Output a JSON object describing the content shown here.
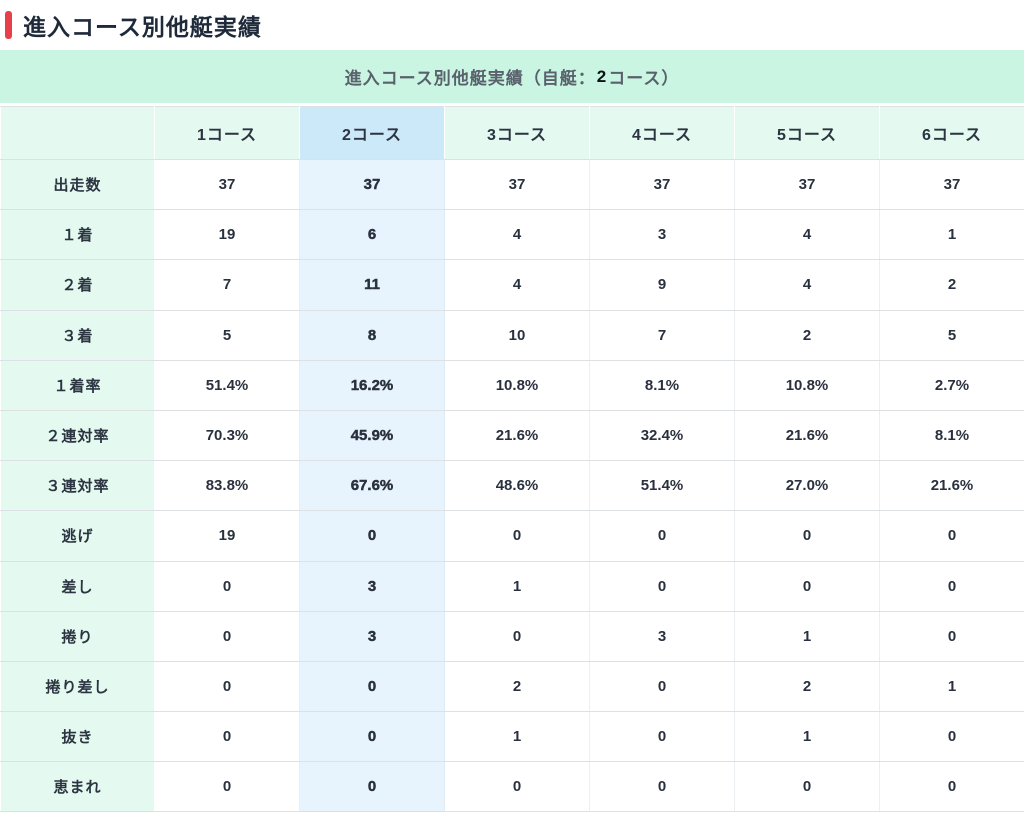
{
  "page": {
    "title": "進入コース別他艇実績"
  },
  "caption": {
    "prefix": "進入コース別他艇実績（自艇：",
    "boat": "2",
    "suffix": "コース）"
  },
  "table": {
    "highlight_index": 1,
    "columns": [
      "1コース",
      "2コース",
      "3コース",
      "4コース",
      "5コース",
      "6コース"
    ],
    "rows": [
      {
        "label": "出走数",
        "values": [
          "37",
          "37",
          "37",
          "37",
          "37",
          "37"
        ]
      },
      {
        "label": "１着",
        "values": [
          "19",
          "6",
          "4",
          "3",
          "4",
          "1"
        ]
      },
      {
        "label": "２着",
        "values": [
          "7",
          "11",
          "4",
          "9",
          "4",
          "2"
        ]
      },
      {
        "label": "３着",
        "values": [
          "5",
          "8",
          "10",
          "7",
          "2",
          "5"
        ]
      },
      {
        "label": "１着率",
        "values": [
          "51.4%",
          "16.2%",
          "10.8%",
          "8.1%",
          "10.8%",
          "2.7%"
        ]
      },
      {
        "label": "２連対率",
        "values": [
          "70.3%",
          "45.9%",
          "21.6%",
          "32.4%",
          "21.6%",
          "8.1%"
        ]
      },
      {
        "label": "３連対率",
        "values": [
          "83.8%",
          "67.6%",
          "48.6%",
          "51.4%",
          "27.0%",
          "21.6%"
        ]
      },
      {
        "label": "逃げ",
        "values": [
          "19",
          "0",
          "0",
          "0",
          "0",
          "0"
        ]
      },
      {
        "label": "差し",
        "values": [
          "0",
          "3",
          "1",
          "0",
          "0",
          "0"
        ]
      },
      {
        "label": "捲り",
        "values": [
          "0",
          "3",
          "0",
          "3",
          "1",
          "0"
        ]
      },
      {
        "label": "捲り差し",
        "values": [
          "0",
          "0",
          "2",
          "0",
          "2",
          "1"
        ]
      },
      {
        "label": "抜き",
        "values": [
          "0",
          "0",
          "1",
          "0",
          "1",
          "0"
        ]
      },
      {
        "label": "恵まれ",
        "values": [
          "0",
          "0",
          "0",
          "0",
          "0",
          "0"
        ]
      }
    ]
  },
  "colors": {
    "accent_red": "#e8404a",
    "title_text": "#1e2a39",
    "banner_bg": "#c9f5e2",
    "banner_text": "#59626c",
    "mint_bg": "#e4f9ef",
    "highlight_header_bg": "#cce9fa",
    "highlight_cell_bg": "#e8f4fd",
    "cell_text": "#2a313e",
    "border": "#dde1e4"
  }
}
